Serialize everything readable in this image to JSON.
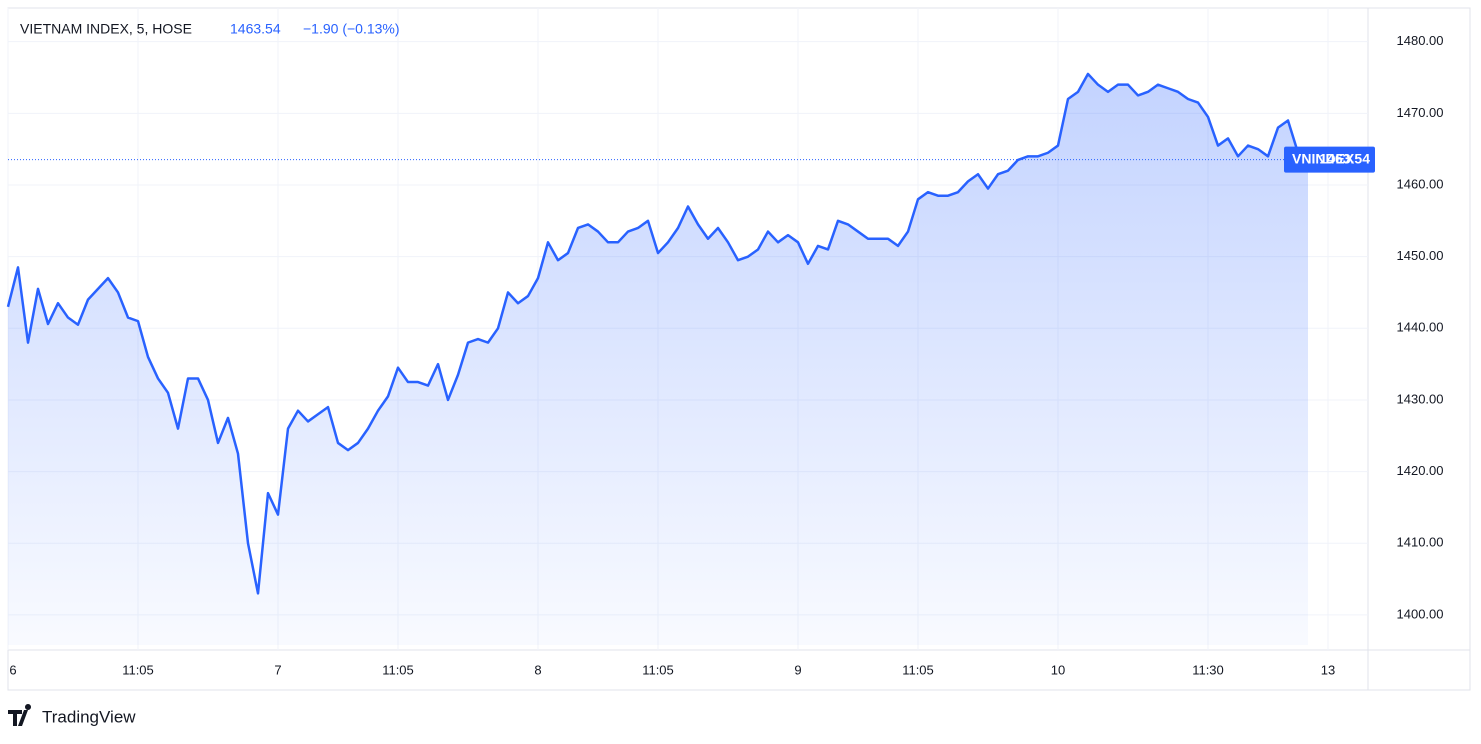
{
  "chart_data": {
    "type": "area",
    "title": "VIETNAM INDEX, 5, HOSE",
    "change": "−1.90 (−0.13%)",
    "brand": "TradingView",
    "categories": [
      "6",
      null,
      null,
      null,
      null,
      null,
      null,
      null,
      null,
      null,
      null,
      null,
      null,
      "11:05",
      null,
      null,
      null,
      null,
      null,
      null,
      null,
      null,
      null,
      null,
      null,
      null,
      null,
      "7",
      null,
      null,
      null,
      null,
      null,
      null,
      null,
      null,
      null,
      null,
      null,
      "11:05",
      null,
      null,
      null,
      null,
      null,
      null,
      null,
      null,
      null,
      null,
      null,
      null,
      null,
      "8",
      null,
      null,
      null,
      null,
      null,
      null,
      null,
      null,
      null,
      null,
      null,
      "11:05",
      null,
      null,
      null,
      null,
      null,
      null,
      null,
      null,
      null,
      null,
      null,
      null,
      null,
      "9",
      null,
      null,
      null,
      null,
      null,
      null,
      null,
      null,
      null,
      null,
      null,
      "11:05",
      null,
      null,
      null,
      null,
      null,
      null,
      null,
      null,
      null,
      null,
      null,
      null,
      null,
      "10",
      null,
      null,
      null,
      null,
      null,
      null,
      null,
      null,
      null,
      null,
      null,
      null,
      null,
      null,
      "11:30",
      null,
      null,
      null,
      null,
      null,
      null,
      null,
      null,
      null,
      null,
      null,
      "13"
    ],
    "series": [
      {
        "name": "VNINDEX",
        "color": "#2962ff",
        "values": [
          1443,
          1448.5,
          1438,
          1445.5,
          1440.6,
          1443.5,
          1441.5,
          1440.5,
          1444,
          1445.5,
          1447,
          1445,
          1441.5,
          1441,
          1436,
          1433,
          1431,
          1426,
          1433,
          1433,
          1430,
          1424,
          1427.5,
          1422.5,
          1410,
          1403,
          1417,
          1414,
          1426,
          1428.5,
          1427,
          1428,
          1429,
          1424,
          1423,
          1424,
          1426,
          1428.5,
          1430.5,
          1434.5,
          1432.5,
          1432.5,
          1432,
          1435,
          1430,
          1433.5,
          1438,
          1438.5,
          1438,
          1440,
          1445,
          1443.5,
          1444.5,
          1447,
          1452,
          1449.5,
          1450.5,
          1454,
          1454.5,
          1453.5,
          1452,
          1452,
          1453.5,
          1454,
          1455,
          1450.5,
          1452,
          1454,
          1457,
          1454.5,
          1452.5,
          1454,
          1452,
          1449.5,
          1450,
          1451,
          1453.5,
          1452,
          1453,
          1452,
          1449,
          1451.5,
          1451,
          1455,
          1454.5,
          1453.5,
          1452.5,
          1452.5,
          1452.5,
          1451.5,
          1453.5,
          1458,
          1459,
          1458.5,
          1458.5,
          1459,
          1460.5,
          1461.5,
          1459.5,
          1461.5,
          1462,
          1463.5,
          1464,
          1464,
          1464.5,
          1465.5,
          1472,
          1473,
          1475.5,
          1474,
          1473,
          1474,
          1474,
          1472.5,
          1473,
          1474,
          1473.5,
          1473,
          1472,
          1471.5,
          1469.5,
          1465.5,
          1466.5,
          1464,
          1465.5,
          1465,
          1464,
          1468,
          1469,
          1464.5,
          1463.54,
          null,
          null
        ]
      }
    ],
    "ylim": [
      1395.8,
      1484.7
    ],
    "yticks": [
      {
        "value": 1400,
        "label": "1400.00"
      },
      {
        "value": 1410,
        "label": "1410.00"
      },
      {
        "value": 1420,
        "label": "1420.00"
      },
      {
        "value": 1430,
        "label": "1430.00"
      },
      {
        "value": 1440,
        "label": "1440.00"
      },
      {
        "value": 1450,
        "label": "1450.00"
      },
      {
        "value": 1460,
        "label": "1460.00"
      },
      {
        "value": 1470,
        "label": "1470.00"
      },
      {
        "value": 1480,
        "label": "1480.00"
      }
    ],
    "grid": true
  }
}
